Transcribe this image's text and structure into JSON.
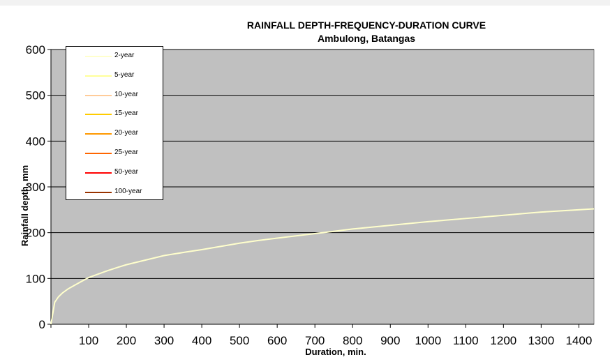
{
  "chart_data": {
    "type": "line",
    "title": "RAINFALL DEPTH-FREQUENCY-DURATION CURVE",
    "subtitle": "Ambulong, Batangas",
    "xlabel": "Duration, min.",
    "ylabel": "Rainfall depth, mm",
    "xlim": [
      0,
      1440
    ],
    "ylim": [
      0,
      600
    ],
    "xticks": [
      "100",
      "200",
      "300",
      "400",
      "500",
      "600",
      "700",
      "800",
      "900",
      "1000",
      "1100",
      "1200",
      "1300",
      "1400"
    ],
    "yticks": [
      "0",
      "100",
      "200",
      "300",
      "400",
      "500",
      "600"
    ],
    "grid": "horizontal",
    "legend_position": "top-left",
    "background": "#c0c0c0",
    "legend": [
      {
        "name": "2-year",
        "color": "#ffffcc"
      },
      {
        "name": "5-year",
        "color": "#ffff99"
      },
      {
        "name": "10-year",
        "color": "#ffcc99"
      },
      {
        "name": "15-year",
        "color": "#ffcc00"
      },
      {
        "name": "20-year",
        "color": "#ff9900"
      },
      {
        "name": "25-year",
        "color": "#ff6600"
      },
      {
        "name": "50-year",
        "color": "#ff0000"
      },
      {
        "name": "100-year",
        "color": "#993300"
      }
    ],
    "series": [
      {
        "name": "2-year",
        "color": "#ffffcc",
        "x": [
          0,
          10,
          20,
          30,
          45,
          60,
          80,
          100,
          120,
          150,
          180,
          200,
          240,
          300,
          360,
          400,
          450,
          500,
          550,
          600,
          650,
          700,
          750,
          800,
          900,
          1000,
          1100,
          1200,
          1300,
          1440
        ],
        "y": [
          0,
          48,
          60,
          68,
          77,
          84,
          93,
          102,
          108,
          117,
          125,
          130,
          138,
          150,
          158,
          163,
          170,
          177,
          183,
          188,
          193,
          198,
          203,
          208,
          216,
          224,
          231,
          238,
          245,
          252
        ]
      }
    ]
  }
}
